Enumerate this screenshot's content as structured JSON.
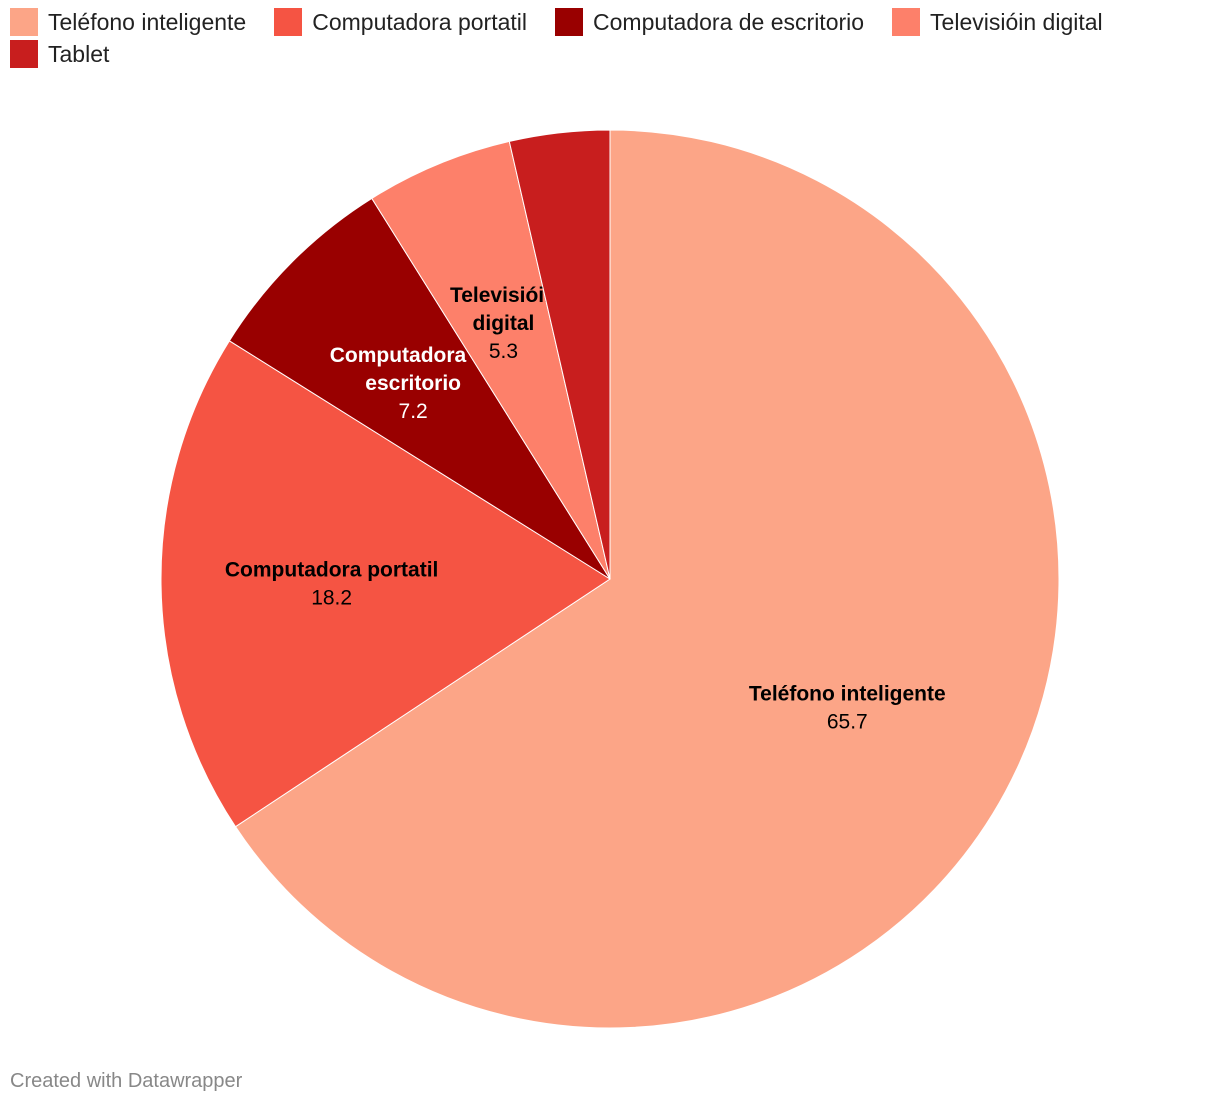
{
  "chart_data": {
    "type": "pie",
    "slices": [
      {
        "name": "Teléfono inteligente",
        "value": 65.7,
        "color": "#fca587",
        "value_label": "65.7",
        "label_lines": [
          "Teléfono inteligente"
        ],
        "label_color": "#000000"
      },
      {
        "name": "Computadora portatil",
        "value": 18.2,
        "color": "#f55443",
        "value_label": "18.2",
        "label_lines": [
          "Computadora portatil"
        ],
        "label_color": "#000000"
      },
      {
        "name": "Computadora de escritorio",
        "value": 7.2,
        "color": "#990000",
        "value_label": "7.2",
        "label_lines": [
          "Computadora de",
          "escritorio"
        ],
        "label_color": "#ffffff"
      },
      {
        "name": "Televisióin digital",
        "value": 5.3,
        "color": "#fd806a",
        "value_label": "5.3",
        "label_lines": [
          "Televisióin",
          "digital"
        ],
        "label_color": "#000000"
      },
      {
        "name": "Tablet",
        "value": 3.6,
        "color": "#c81e1e",
        "value_label": "",
        "label_lines": [],
        "label_color": "#000000"
      }
    ],
    "legend_position": "top-left"
  },
  "footer": {
    "credit": "Created with Datawrapper"
  }
}
